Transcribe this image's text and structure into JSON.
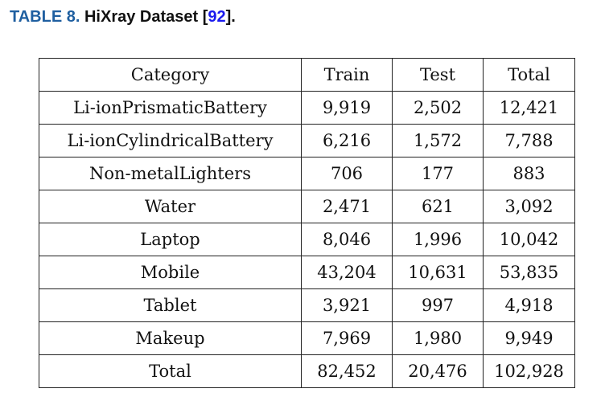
{
  "caption": {
    "label": "TABLE 8.",
    "title": "HiXray Dataset [",
    "ref": "92",
    "suffix": "]."
  },
  "table": {
    "headers": [
      "Category",
      "Train",
      "Test",
      "Total"
    ],
    "rows": [
      [
        "Li-ionPrismaticBattery",
        "9,919",
        "2,502",
        "12,421"
      ],
      [
        "Li-ionCylindricalBattery",
        "6,216",
        "1,572",
        "7,788"
      ],
      [
        "Non-metalLighters",
        "706",
        "177",
        "883"
      ],
      [
        "Water",
        "2,471",
        "621",
        "3,092"
      ],
      [
        "Laptop",
        "8,046",
        "1,996",
        "10,042"
      ],
      [
        "Mobile",
        "43,204",
        "10,631",
        "53,835"
      ],
      [
        "Tablet",
        "3,921",
        "997",
        "4,918"
      ],
      [
        "Makeup",
        "7,969",
        "1,980",
        "9,949"
      ],
      [
        "Total",
        "82,452",
        "20,476",
        "102,928"
      ]
    ]
  },
  "colors": {
    "caption_label": "#1f5fa0",
    "reference_link": "#1a1aee"
  }
}
